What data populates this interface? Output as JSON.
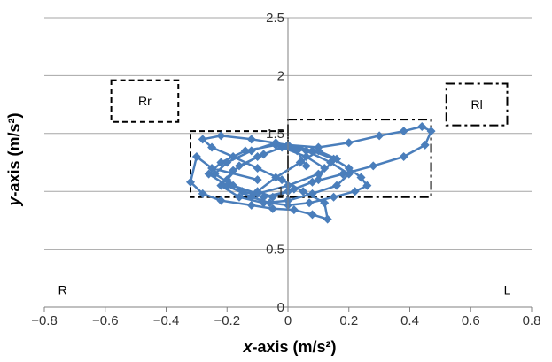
{
  "chart_data": {
    "type": "scatter",
    "title": "",
    "xlabel": {
      "italic": "x",
      "rest": "-axis (m/s²)"
    },
    "ylabel": {
      "italic": "y",
      "rest": "-axis (m/s²)"
    },
    "xlim": [
      -0.8,
      0.8
    ],
    "ylim": [
      0,
      2.5
    ],
    "xticks": [
      "−0.8",
      "−0.6",
      "−0.4",
      "−0.2",
      "0",
      "0.2",
      "0.4",
      "0.6",
      "0.8"
    ],
    "yticks": [
      "0",
      "0.5",
      "1",
      "1.5",
      "2",
      "2.5"
    ],
    "grid": "horizontal",
    "series_color": "#4a7ebb",
    "annotations": [
      {
        "text": "R",
        "x": -0.74,
        "y": 0.15
      },
      {
        "text": "L",
        "x": 0.72,
        "y": 0.15
      }
    ],
    "regions": [
      {
        "label": "Rr",
        "x0": -0.58,
        "x1": -0.36,
        "y0": 1.6,
        "y1": 1.96,
        "style": "dashed"
      },
      {
        "label": "Rl",
        "x0": 0.52,
        "x1": 0.72,
        "y0": 1.57,
        "y1": 1.93,
        "style": "dashdot"
      },
      {
        "label": "",
        "x0": -0.32,
        "x1": 0.0,
        "y0": 0.95,
        "y1": 1.52,
        "style": "dashed"
      },
      {
        "label": "",
        "x0": 0.0,
        "x1": 0.47,
        "y0": 0.95,
        "y1": 1.62,
        "style": "dashdot"
      }
    ],
    "series": [
      {
        "x": [
          -0.1,
          -0.25,
          -0.3,
          -0.32,
          -0.28,
          -0.22,
          -0.12,
          -0.05,
          0.02,
          0.08,
          0.13,
          0.12,
          0.05,
          -0.02,
          -0.1,
          -0.18,
          -0.25,
          -0.28,
          -0.22,
          -0.12,
          0.0,
          0.1,
          0.2,
          0.3,
          0.38,
          0.44,
          0.47,
          0.45,
          0.38,
          0.28,
          0.18,
          0.08,
          0.0,
          -0.08,
          -0.15,
          -0.2,
          -0.16,
          -0.08,
          0.0,
          0.08,
          0.15,
          0.2,
          0.24,
          0.26,
          0.22,
          0.15,
          0.07,
          0.0,
          -0.06,
          -0.12,
          -0.2,
          -0.26,
          -0.22,
          -0.14,
          -0.04,
          0.06,
          0.14,
          0.2,
          0.16,
          0.08,
          0.0,
          -0.08,
          -0.16,
          -0.22,
          -0.18,
          -0.1,
          -0.02,
          0.06,
          0.12,
          0.1,
          0.02,
          -0.05,
          -0.1,
          -0.04,
          0.04,
          0.1,
          0.16,
          0.1,
          0.0,
          -0.1,
          -0.18,
          -0.24,
          -0.2,
          -0.12,
          -0.04,
          0.03,
          0.06
        ],
        "y": [
          1.1,
          1.2,
          1.3,
          1.08,
          0.98,
          0.92,
          0.88,
          0.85,
          0.84,
          0.8,
          0.76,
          0.9,
          1.0,
          1.1,
          1.2,
          1.3,
          1.38,
          1.45,
          1.48,
          1.45,
          1.4,
          1.38,
          1.42,
          1.48,
          1.52,
          1.56,
          1.52,
          1.4,
          1.3,
          1.22,
          1.15,
          1.08,
          1.0,
          0.95,
          1.0,
          1.1,
          1.22,
          1.32,
          1.4,
          1.35,
          1.28,
          1.2,
          1.12,
          1.05,
          1.0,
          0.95,
          0.9,
          0.88,
          0.9,
          0.95,
          1.05,
          1.15,
          1.25,
          1.35,
          1.4,
          1.35,
          1.25,
          1.15,
          1.05,
          0.98,
          0.92,
          0.9,
          0.95,
          1.05,
          1.18,
          1.3,
          1.38,
          1.3,
          1.2,
          1.1,
          1.02,
          0.95,
          1.0,
          1.12,
          1.25,
          1.35,
          1.28,
          1.15,
          1.05,
          0.98,
          1.05,
          1.15,
          1.25,
          1.35,
          1.42,
          1.35,
          1.22
        ]
      }
    ]
  }
}
